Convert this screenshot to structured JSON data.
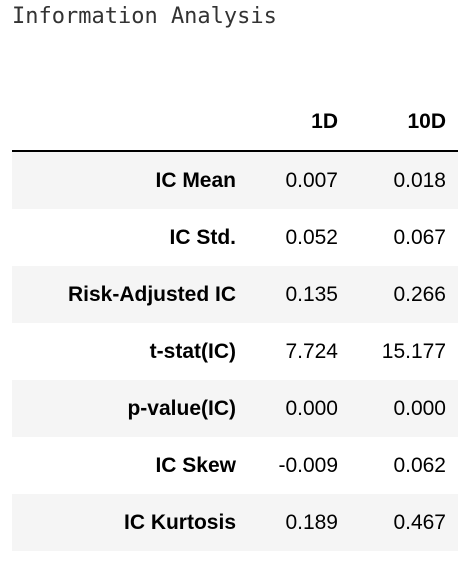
{
  "title": "Information Analysis",
  "table": {
    "columns": [
      "",
      "1D",
      "10D"
    ],
    "rows": [
      {
        "label": "IC Mean",
        "d1": "0.007",
        "d10": "0.018"
      },
      {
        "label": "IC Std.",
        "d1": "0.052",
        "d10": "0.067"
      },
      {
        "label": "Risk-Adjusted IC",
        "d1": "0.135",
        "d10": "0.266"
      },
      {
        "label": "t-stat(IC)",
        "d1": "7.724",
        "d10": "15.177"
      },
      {
        "label": "p-value(IC)",
        "d1": "0.000",
        "d10": "0.000"
      },
      {
        "label": "IC Skew",
        "d1": "-0.009",
        "d10": "0.062"
      },
      {
        "label": "IC Kurtosis",
        "d1": "0.189",
        "d10": "0.467"
      }
    ]
  }
}
